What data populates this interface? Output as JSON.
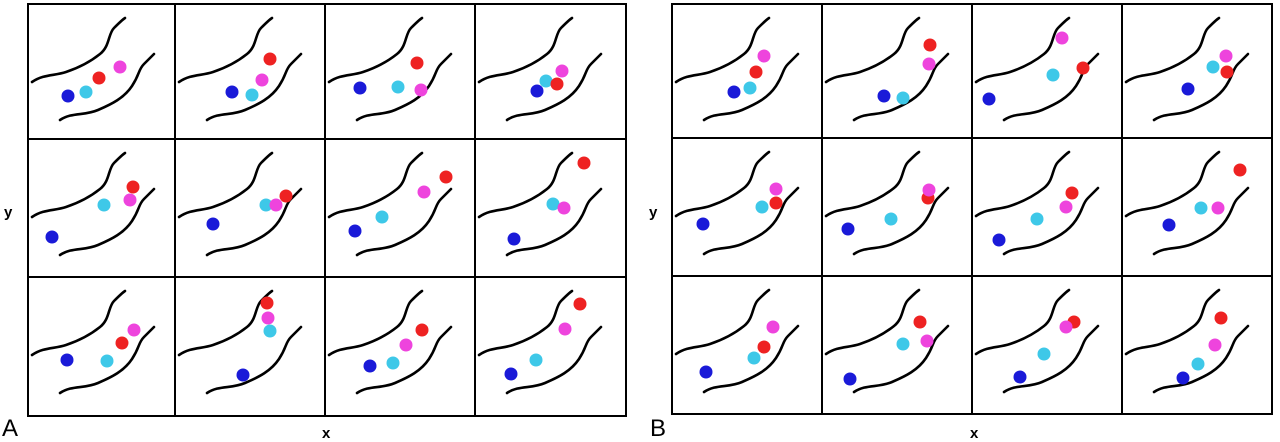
{
  "panels": [
    {
      "label": "A",
      "x_label": "x",
      "y_label": "y"
    },
    {
      "label": "B",
      "x_label": "x",
      "y_label": "y"
    }
  ]
}
